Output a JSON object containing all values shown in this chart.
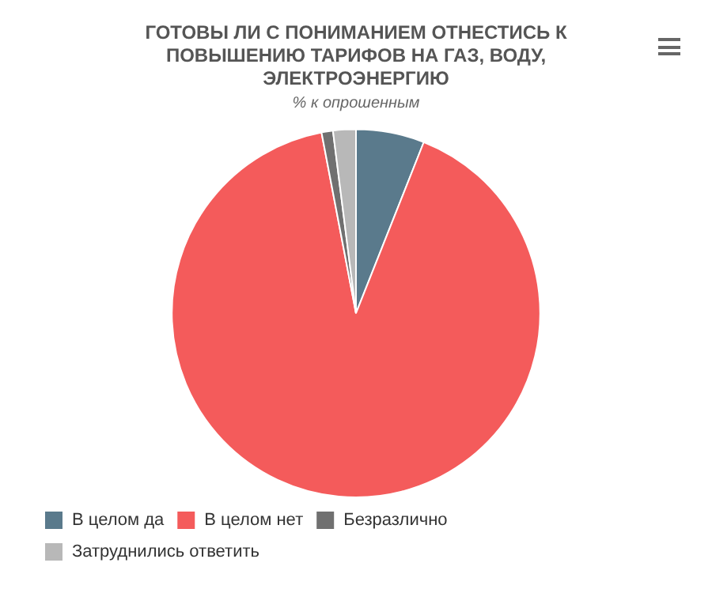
{
  "chart_data": {
    "type": "pie",
    "title": "ГОТОВЫ ЛИ С ПОНИМАНИЕМ ОТНЕСТИСЬ К ПОВЫШЕНИЮ ТАРИФОВ НА ГАЗ, ВОДУ, ЭЛЕКТРОЭНЕРГИЮ",
    "subtitle": "% к опрошенным",
    "categories": [
      "В целом да",
      "В целом нет",
      "Безразлично",
      "Затруднились ответить"
    ],
    "values": [
      6,
      91,
      1,
      2
    ],
    "colors": [
      "#5a7a8c",
      "#f45b5b",
      "#707070",
      "#b8b8b8"
    ],
    "legend": "bottom"
  }
}
